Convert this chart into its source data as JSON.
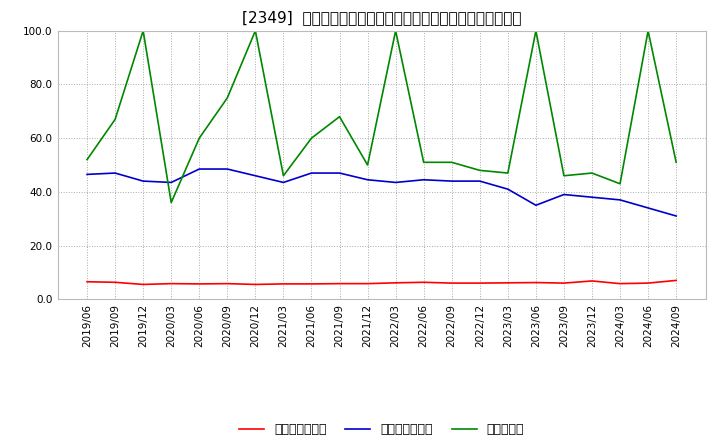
{
  "title": "[2349]  売上債権回転率、買入債務回転率、在庫回転率の推移",
  "xlabels": [
    "2019/06",
    "2019/09",
    "2019/12",
    "2020/03",
    "2020/06",
    "2020/09",
    "2020/12",
    "2021/03",
    "2021/06",
    "2021/09",
    "2021/12",
    "2022/03",
    "2022/06",
    "2022/09",
    "2022/12",
    "2023/03",
    "2023/06",
    "2023/09",
    "2023/12",
    "2024/03",
    "2024/06",
    "2024/09"
  ],
  "receivables_turnover": [
    6.5,
    6.3,
    5.5,
    5.8,
    5.7,
    5.8,
    5.5,
    5.7,
    5.7,
    5.8,
    5.8,
    6.1,
    6.3,
    6.0,
    6.0,
    6.1,
    6.2,
    6.0,
    6.8,
    5.8,
    6.0,
    7.0
  ],
  "payables_turnover": [
    46.5,
    47.0,
    44.0,
    43.5,
    48.5,
    48.5,
    46.0,
    43.5,
    47.0,
    47.0,
    44.5,
    43.5,
    44.5,
    44.0,
    44.0,
    41.0,
    35.0,
    39.0,
    38.0,
    37.0,
    34.0,
    31.0
  ],
  "inventory_turnover": [
    52.0,
    67.0,
    100.0,
    36.0,
    60.0,
    75.0,
    100.0,
    46.0,
    60.0,
    68.0,
    50.0,
    100.0,
    51.0,
    51.0,
    48.0,
    47.0,
    100.0,
    46.0,
    47.0,
    43.0,
    100.0,
    51.0
  ],
  "ylim": [
    0.0,
    100.0
  ],
  "yticks": [
    0.0,
    20.0,
    40.0,
    60.0,
    80.0,
    100.0
  ],
  "line_colors": {
    "receivables": "#ff0000",
    "payables": "#0000cc",
    "inventory": "#008800"
  },
  "legend_labels": [
    "売上債権回転率",
    "買入債務回転率",
    "在庫回転率"
  ],
  "background_color": "#ffffff",
  "grid_color": "#aaaaaa",
  "title_fontsize": 11,
  "tick_fontsize": 7.5,
  "legend_fontsize": 9
}
